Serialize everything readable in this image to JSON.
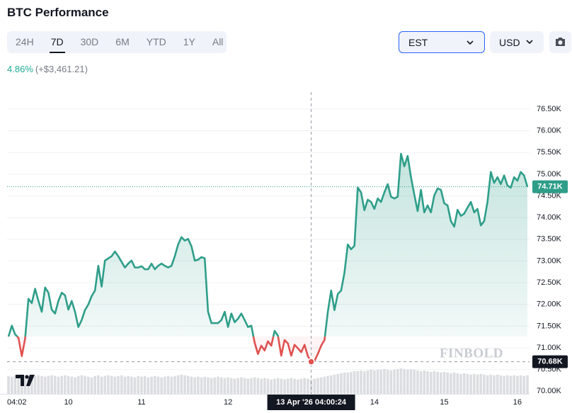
{
  "header": {
    "title": "BTC Performance"
  },
  "tabs": [
    "24H",
    "7D",
    "30D",
    "6M",
    "YTD",
    "1Y",
    "All"
  ],
  "active_tab": 1,
  "timezone": "EST",
  "currency": "USD",
  "change": {
    "percent": "4.86%",
    "amount": "(+$3,461.21)"
  },
  "chart_data": {
    "type": "line",
    "watermark": "FINBOLD",
    "color": "#2e9e89",
    "down_color": "#e0514f",
    "grid": true,
    "ylim": [
      69.94,
      76.89
    ],
    "yticks": [
      {
        "value": 70.0,
        "label": "70.00K"
      },
      {
        "value": 70.5,
        "label": "70.50K"
      },
      {
        "value": 71.0,
        "label": "71.00K"
      },
      {
        "value": 71.5,
        "label": "71.50K"
      },
      {
        "value": 72.0,
        "label": "72.00K"
      },
      {
        "value": 72.5,
        "label": "72.50K"
      },
      {
        "value": 73.0,
        "label": "73.00K"
      },
      {
        "value": 73.5,
        "label": "73.50K"
      },
      {
        "value": 74.0,
        "label": "74.00K"
      },
      {
        "value": 74.5,
        "label": "74.50K"
      },
      {
        "value": 75.0,
        "label": "75.00K"
      },
      {
        "value": 75.5,
        "label": "75.50K"
      },
      {
        "value": 76.0,
        "label": "76.00K"
      },
      {
        "value": 76.5,
        "label": "76.50K"
      }
    ],
    "categories": [
      "04:02",
      null,
      null,
      null,
      null,
      null,
      null,
      null,
      null,
      null,
      null,
      null,
      null,
      null,
      null,
      null,
      null,
      null,
      "10",
      null,
      null,
      null,
      null,
      null,
      null,
      null,
      null,
      null,
      null,
      null,
      null,
      null,
      null,
      null,
      null,
      null,
      null,
      null,
      null,
      null,
      "11",
      null,
      null,
      null,
      null,
      null,
      null,
      null,
      null,
      null,
      null,
      null,
      null,
      null,
      null,
      null,
      null,
      null,
      null,
      null,
      null,
      null,
      null,
      null,
      null,
      null,
      "12",
      null,
      null,
      null,
      null,
      null,
      null,
      null,
      null,
      null,
      null,
      null,
      null,
      null,
      null,
      null,
      null,
      null,
      null,
      null,
      null,
      null,
      null,
      null,
      null,
      "13 Apr '26 04:00:24",
      null,
      null,
      null,
      null,
      null,
      null,
      null,
      null,
      null,
      null,
      null,
      null,
      null,
      null,
      null,
      null,
      null,
      null,
      "14",
      null,
      null,
      null,
      null,
      null,
      null,
      null,
      null,
      null,
      null,
      null,
      null,
      null,
      null,
      null,
      null,
      null,
      null,
      null,
      null,
      "15",
      null,
      null,
      null,
      null,
      null,
      null,
      null,
      null,
      null,
      null,
      null,
      null,
      null,
      null,
      null,
      null,
      null,
      null,
      null,
      null,
      null,
      "16",
      null,
      null,
      null
    ],
    "values": [
      71.26,
      71.51,
      71.31,
      71.23,
      70.81,
      71.21,
      72.13,
      72.03,
      72.36,
      72.08,
      71.83,
      72.39,
      72.27,
      71.88,
      71.79,
      72.08,
      72.27,
      72.21,
      71.88,
      72.08,
      71.83,
      71.48,
      71.64,
      71.87,
      72.0,
      72.19,
      72.32,
      72.89,
      72.41,
      73.01,
      73.06,
      73.11,
      73.22,
      73.11,
      72.98,
      72.85,
      72.94,
      73.01,
      72.85,
      72.85,
      72.88,
      72.81,
      72.81,
      72.94,
      72.81,
      72.89,
      72.94,
      72.89,
      72.85,
      72.89,
      73.11,
      73.38,
      73.55,
      73.47,
      73.51,
      73.34,
      73.01,
      73.03,
      73.09,
      73.06,
      71.83,
      71.57,
      71.57,
      71.57,
      71.64,
      71.83,
      71.48,
      71.79,
      71.59,
      71.67,
      71.79,
      71.64,
      71.48,
      71.51,
      71.12,
      70.86,
      71.05,
      70.94,
      71.15,
      71.05,
      71.39,
      71.28,
      70.82,
      71.18,
      71.1,
      70.82,
      71.07,
      70.99,
      70.9,
      71.07,
      70.81,
      70.68,
      70.7,
      70.86,
      71.05,
      71.18,
      71.83,
      72.32,
      71.87,
      72.24,
      72.32,
      72.73,
      73.38,
      73.27,
      73.35,
      74.69,
      74.58,
      74.17,
      74.41,
      74.36,
      74.2,
      74.44,
      74.36,
      74.58,
      74.77,
      74.48,
      74.44,
      74.48,
      75.47,
      75.18,
      75.42,
      74.93,
      74.53,
      74.15,
      74.64,
      74.12,
      74.28,
      74.12,
      74.51,
      74.67,
      74.64,
      74.33,
      74.28,
      73.92,
      73.79,
      74.18,
      74.04,
      74.09,
      74.23,
      74.36,
      74.12,
      74.2,
      73.82,
      73.92,
      74.36,
      75.05,
      74.8,
      74.93,
      74.77,
      74.97,
      74.74,
      74.69,
      74.93,
      74.85,
      75.05,
      74.97,
      74.71
    ],
    "volume": [
      26,
      25,
      27,
      26,
      28,
      27,
      26,
      25,
      26,
      27,
      26,
      25,
      26,
      27,
      26,
      25,
      26,
      27,
      26,
      25,
      24,
      26,
      27,
      26,
      25,
      24,
      26,
      27,
      25,
      26,
      27,
      26,
      25,
      26,
      27,
      25,
      26,
      25,
      24,
      26,
      25,
      26,
      24,
      25,
      26,
      25,
      24,
      25,
      26,
      25,
      26,
      27,
      28,
      27,
      26,
      25,
      24,
      25,
      24,
      25,
      24,
      23,
      24,
      25,
      24,
      23,
      24,
      23,
      22,
      23,
      24,
      23,
      22,
      23,
      24,
      23,
      22,
      23,
      22,
      21,
      22,
      23,
      22,
      21,
      22,
      23,
      22,
      21,
      22,
      23,
      22,
      21,
      22,
      23,
      24,
      25,
      26,
      27,
      28,
      29,
      30,
      31,
      31,
      32,
      33,
      33,
      34,
      33,
      34,
      35,
      34,
      35,
      35,
      36,
      35,
      34,
      35,
      36,
      37,
      36,
      35,
      36,
      35,
      34,
      33,
      34,
      33,
      32,
      33,
      32,
      31,
      32,
      31,
      30,
      31,
      30,
      29,
      30,
      29,
      28,
      29,
      28,
      29,
      28,
      27,
      28,
      27,
      28,
      27,
      26,
      27,
      26,
      27,
      26,
      27,
      26,
      27
    ],
    "price_line": {
      "value": 74.71,
      "label": "74.71K"
    },
    "crosshair": {
      "value": 70.68,
      "label": "70.68K"
    }
  }
}
